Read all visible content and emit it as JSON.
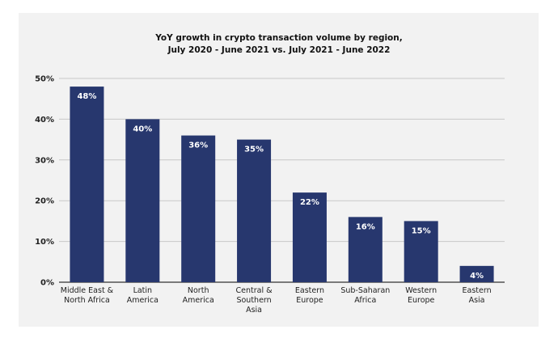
{
  "chart_data": {
    "type": "bar",
    "title": [
      "YoY growth in crypto transaction volume by region,",
      "July 2020 - June 2021 vs. July 2021 - June 2022"
    ],
    "categories": [
      [
        "Middle East &",
        "North Africa"
      ],
      [
        "Latin",
        "America"
      ],
      [
        "North",
        "America"
      ],
      [
        "Central &",
        "Southern",
        "Asia"
      ],
      [
        "Eastern",
        "Europe"
      ],
      [
        "Sub-Saharan",
        "Africa"
      ],
      [
        "Western",
        "Europe"
      ],
      [
        "Eastern",
        "Asia"
      ]
    ],
    "values": [
      48,
      40,
      36,
      35,
      22,
      16,
      15,
      4
    ],
    "data_labels": [
      "48%",
      "40%",
      "36%",
      "35%",
      "22%",
      "16%",
      "15%",
      "4%"
    ],
    "yticks": [
      0,
      10,
      20,
      30,
      40,
      50
    ],
    "ytick_labels": [
      "0%",
      "10%",
      "20%",
      "30%",
      "40%",
      "50%"
    ],
    "ylim": [
      0,
      50
    ],
    "xlabel": "",
    "ylabel": "",
    "grid": true,
    "colors": {
      "bar": "#27376e",
      "grid": "#c8c8c8",
      "panel": "#f2f2f2",
      "axis": "#333333"
    }
  }
}
